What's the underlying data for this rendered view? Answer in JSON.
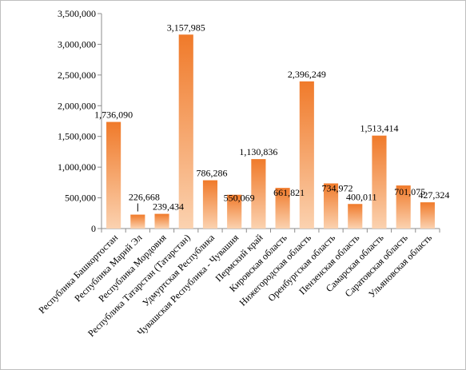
{
  "chart_data": {
    "type": "bar",
    "title": "",
    "xlabel": "",
    "ylabel": "",
    "ylim": [
      0,
      3500000
    ],
    "yticks": [
      "0",
      "500,000",
      "1,000,000",
      "1,500,000",
      "2,000,000",
      "2,500,000",
      "3,000,000",
      "3,500,000"
    ],
    "grid": false,
    "legend": "none",
    "bar_color_top": "#f07a2a",
    "bar_color_bottom": "#fbd2b0",
    "categories": [
      "Республика Башкортостан",
      "Республика Марий Эл",
      "Республика Мордовия",
      "Республика Татарстан (Татарстан)",
      "Удмуртская Республика",
      "Чувашская Республика - Чувашия",
      "Пермский край",
      "Кировская область",
      "Нижегородская область",
      "Оренбургская область",
      "Пензенская область",
      "Самарская область",
      "Саратовская область",
      "Ульяновская область"
    ],
    "values": [
      1736090,
      226668,
      239434,
      3157985,
      786286,
      550069,
      1130836,
      661821,
      2396249,
      734972,
      400011,
      1513414,
      701075,
      427324
    ],
    "data_labels": [
      "1,736,090",
      "226,668",
      "239,434",
      "3,157,985",
      "786,286",
      "550,069",
      "1,130,836",
      "661,821",
      "2,396,249",
      "734,972",
      "400,011",
      "1,513,414",
      "701,075",
      "427,324"
    ]
  }
}
